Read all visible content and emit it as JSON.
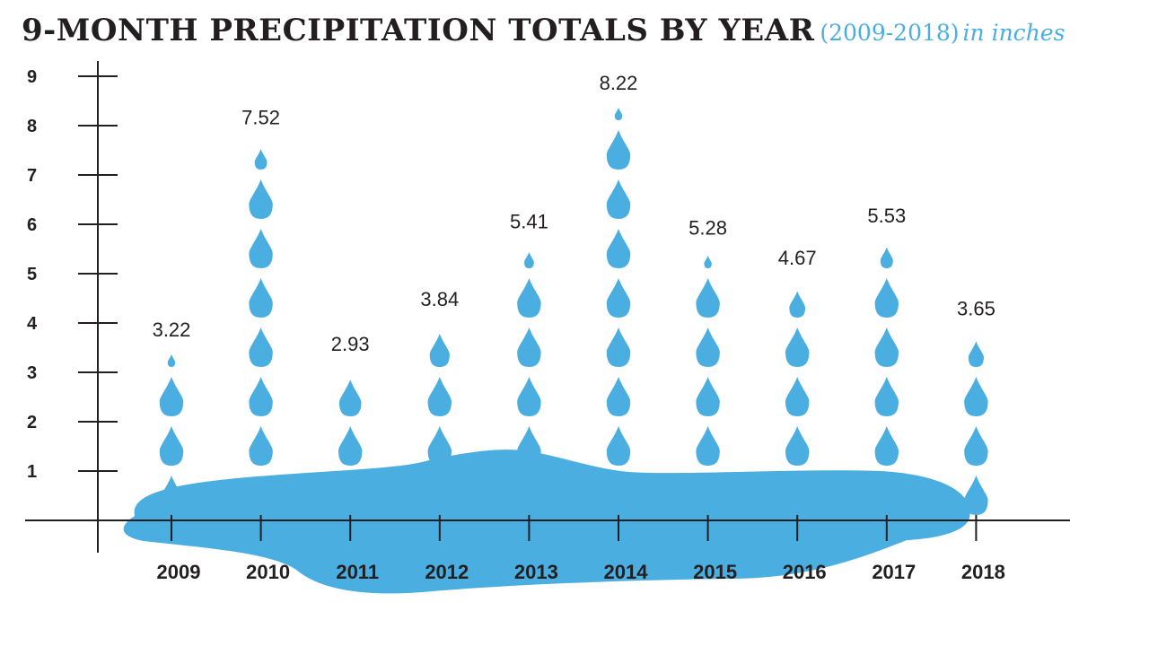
{
  "title": {
    "main": "9-MONTH PRECIPITATION TOTALS BY YEAR",
    "years": "(2009-2018)",
    "unit": "in inches"
  },
  "colors": {
    "water": "#4aaee0",
    "ink": "#231f20"
  },
  "chart_data": {
    "type": "bar",
    "title": "9-MONTH PRECIPITATION TOTALS BY YEAR",
    "subtitle": "(2009-2018) in inches",
    "xlabel": "",
    "ylabel": "",
    "categories": [
      "2009",
      "2010",
      "2011",
      "2012",
      "2013",
      "2014",
      "2015",
      "2016",
      "2017",
      "2018"
    ],
    "values": [
      3.22,
      7.52,
      2.93,
      3.84,
      5.41,
      8.22,
      5.28,
      4.67,
      5.53,
      3.65
    ],
    "value_labels": [
      "3.22",
      "7.52",
      "2.93",
      "3.84",
      "5.41",
      "8.22",
      "5.28",
      "4.67",
      "5.53",
      "3.65"
    ],
    "yticks": [
      "1",
      "2",
      "3",
      "4",
      "5",
      "6",
      "7",
      "8",
      "9"
    ],
    "ylim": [
      0,
      9
    ],
    "mark": "stacked water drops (one drop per inch)",
    "grid": false,
    "legend": "none"
  }
}
